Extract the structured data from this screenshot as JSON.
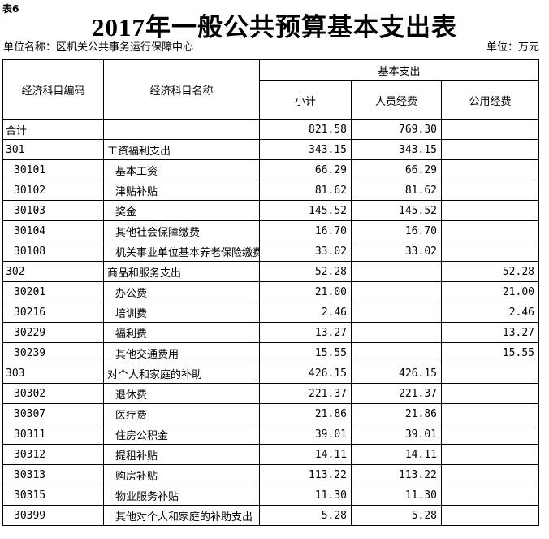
{
  "page": {
    "table_tag": "表6",
    "title": "2017年一般公共预算基本支出表",
    "unit_name_label": "单位名称：",
    "unit_name": "区机关公共事务运行保障中心",
    "unit_label": "单位：万元"
  },
  "table": {
    "header": {
      "code": "经济科目编码",
      "name": "经济科目名称",
      "group": "基本支出",
      "subtotal": "小计",
      "personnel": "人员经费",
      "public": "公用经费"
    },
    "rows": [
      {
        "code": "合计",
        "name": "",
        "subtotal": "821.58",
        "personnel": "769.30",
        "public": "",
        "level": 0
      },
      {
        "code": "301",
        "name": "工资福利支出",
        "subtotal": "343.15",
        "personnel": "343.15",
        "public": "",
        "level": 0
      },
      {
        "code": "30101",
        "name": "基本工资",
        "subtotal": "66.29",
        "personnel": "66.29",
        "public": "",
        "level": 1
      },
      {
        "code": "30102",
        "name": "津贴补贴",
        "subtotal": "81.62",
        "personnel": "81.62",
        "public": "",
        "level": 1
      },
      {
        "code": "30103",
        "name": "奖金",
        "subtotal": "145.52",
        "personnel": "145.52",
        "public": "",
        "level": 1
      },
      {
        "code": "30104",
        "name": "其他社会保障缴费",
        "subtotal": "16.70",
        "personnel": "16.70",
        "public": "",
        "level": 1
      },
      {
        "code": "30108",
        "name": "机关事业单位基本养老保险缴费",
        "subtotal": "33.02",
        "personnel": "33.02",
        "public": "",
        "level": 1
      },
      {
        "code": "302",
        "name": "商品和服务支出",
        "subtotal": "52.28",
        "personnel": "",
        "public": "52.28",
        "level": 0
      },
      {
        "code": "30201",
        "name": "办公费",
        "subtotal": "21.00",
        "personnel": "",
        "public": "21.00",
        "level": 1
      },
      {
        "code": "30216",
        "name": "培训费",
        "subtotal": "2.46",
        "personnel": "",
        "public": "2.46",
        "level": 1
      },
      {
        "code": "30229",
        "name": "福利费",
        "subtotal": "13.27",
        "personnel": "",
        "public": "13.27",
        "level": 1
      },
      {
        "code": "30239",
        "name": "其他交通费用",
        "subtotal": "15.55",
        "personnel": "",
        "public": "15.55",
        "level": 1
      },
      {
        "code": "303",
        "name": "对个人和家庭的补助",
        "subtotal": "426.15",
        "personnel": "426.15",
        "public": "",
        "level": 0
      },
      {
        "code": "30302",
        "name": "退休费",
        "subtotal": "221.37",
        "personnel": "221.37",
        "public": "",
        "level": 1
      },
      {
        "code": "30307",
        "name": "医疗费",
        "subtotal": "21.86",
        "personnel": "21.86",
        "public": "",
        "level": 1
      },
      {
        "code": "30311",
        "name": "住房公积金",
        "subtotal": "39.01",
        "personnel": "39.01",
        "public": "",
        "level": 1
      },
      {
        "code": "30312",
        "name": "提租补贴",
        "subtotal": "14.11",
        "personnel": "14.11",
        "public": "",
        "level": 1
      },
      {
        "code": "30313",
        "name": "购房补贴",
        "subtotal": "113.22",
        "personnel": "113.22",
        "public": "",
        "level": 1
      },
      {
        "code": "30315",
        "name": "物业服务补贴",
        "subtotal": "11.30",
        "personnel": "11.30",
        "public": "",
        "level": 1
      },
      {
        "code": "30399",
        "name": "其他对个人和家庭的补助支出",
        "subtotal": "5.28",
        "personnel": "5.28",
        "public": "",
        "level": 1
      }
    ]
  }
}
